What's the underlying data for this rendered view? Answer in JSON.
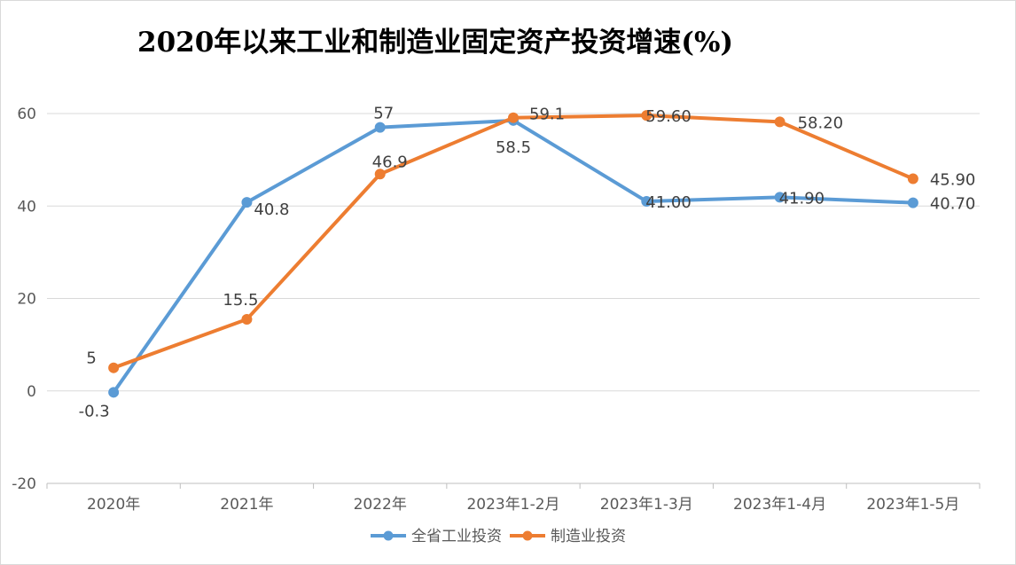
{
  "chart_data": {
    "type": "line",
    "title": "2020年以来工业和制造业固定资产投资增速(%)",
    "categories": [
      "2020年",
      "2021年",
      "2022年",
      "2023年1-2月",
      "2023年1-3月",
      "2023年1-4月",
      "2023年1-5月"
    ],
    "series": [
      {
        "name": "全省工业投资",
        "color": "#5b9bd5",
        "values": [
          -0.3,
          40.8,
          57,
          58.5,
          41.0,
          41.9,
          40.7
        ],
        "labels": [
          "-0.3",
          "40.8",
          "57",
          "58.5",
          "41.00",
          "41.90",
          "40.70"
        ]
      },
      {
        "name": "制造业投资",
        "color": "#ed7d31",
        "values": [
          5,
          15.5,
          46.9,
          59.1,
          59.6,
          58.2,
          45.9
        ],
        "labels": [
          "5",
          "15.5",
          "46.9",
          "59.1",
          "59.60",
          "58.20",
          "45.90"
        ]
      }
    ],
    "yticks": [
      "-20",
      "0",
      "20",
      "40",
      "60"
    ],
    "ylim": [
      -20,
      60
    ],
    "grid": true,
    "legend": "bottom"
  }
}
